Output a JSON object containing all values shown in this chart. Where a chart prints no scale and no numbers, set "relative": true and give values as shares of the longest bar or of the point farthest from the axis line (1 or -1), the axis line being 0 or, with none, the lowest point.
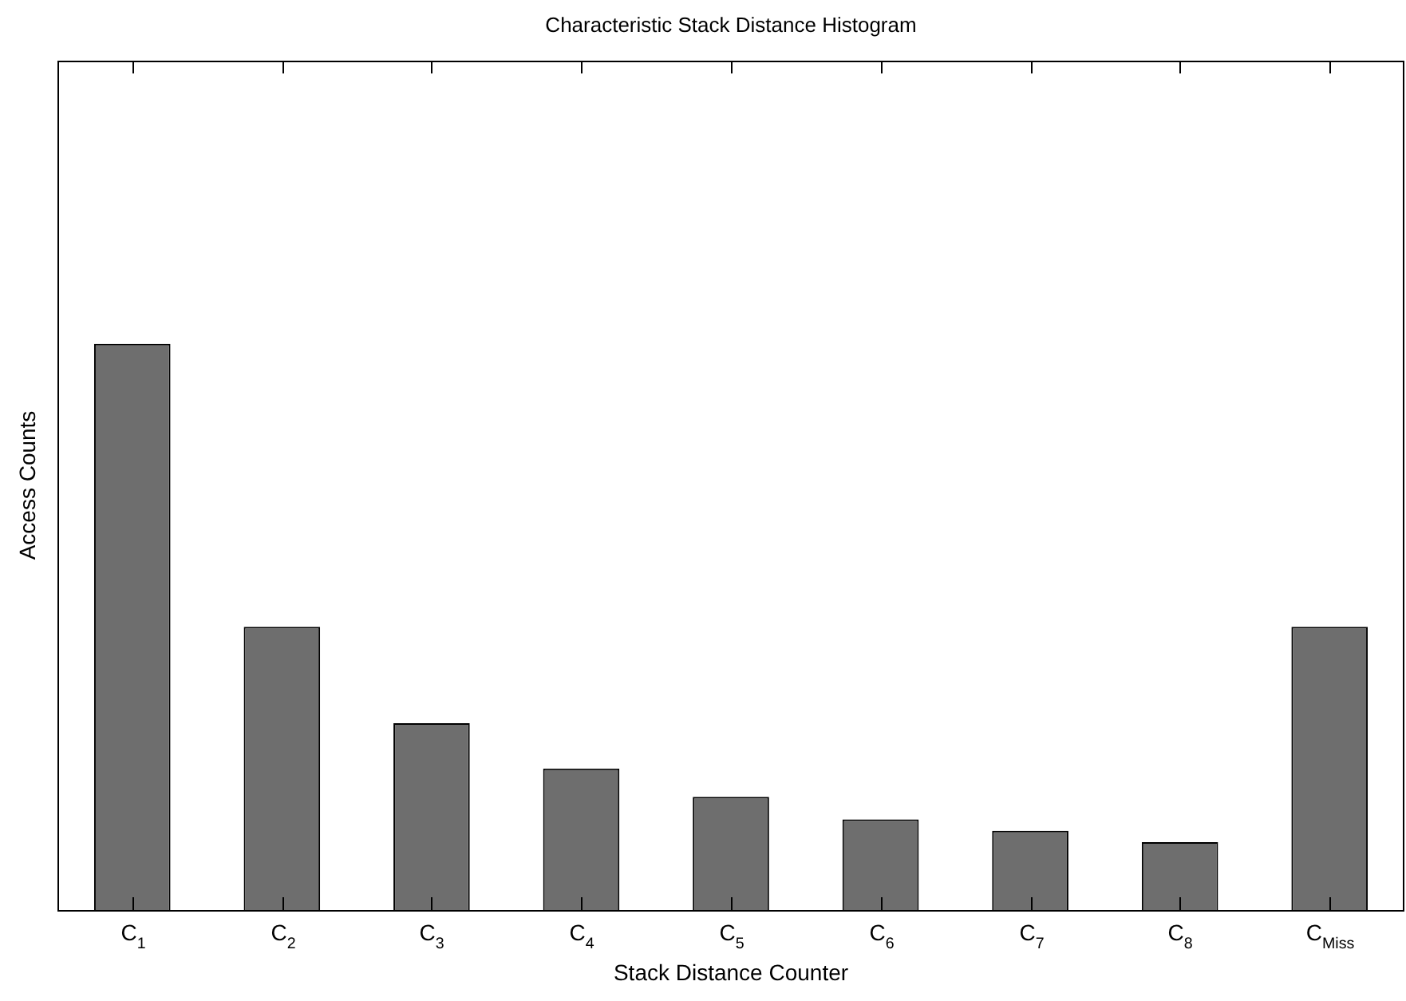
{
  "chart_data": {
    "type": "bar",
    "title": "Characteristic Stack Distance Histogram",
    "xlabel": "Stack Distance Counter",
    "ylabel": "Access Counts",
    "categories": [
      "C$_{1}$",
      "C$_{2}$",
      "C$_{3}$",
      "C$_{4}$",
      "C$_{5}$",
      "C$_{6}$",
      "C$_{7}$",
      "C$_{8}$",
      "C$_{Miss}$"
    ],
    "values": [
      1,
      0.5,
      0.33,
      0.25,
      0.2,
      0.16,
      0.14,
      0.12,
      0.5
    ],
    "color": "#6e6e6e",
    "relative": true
  }
}
